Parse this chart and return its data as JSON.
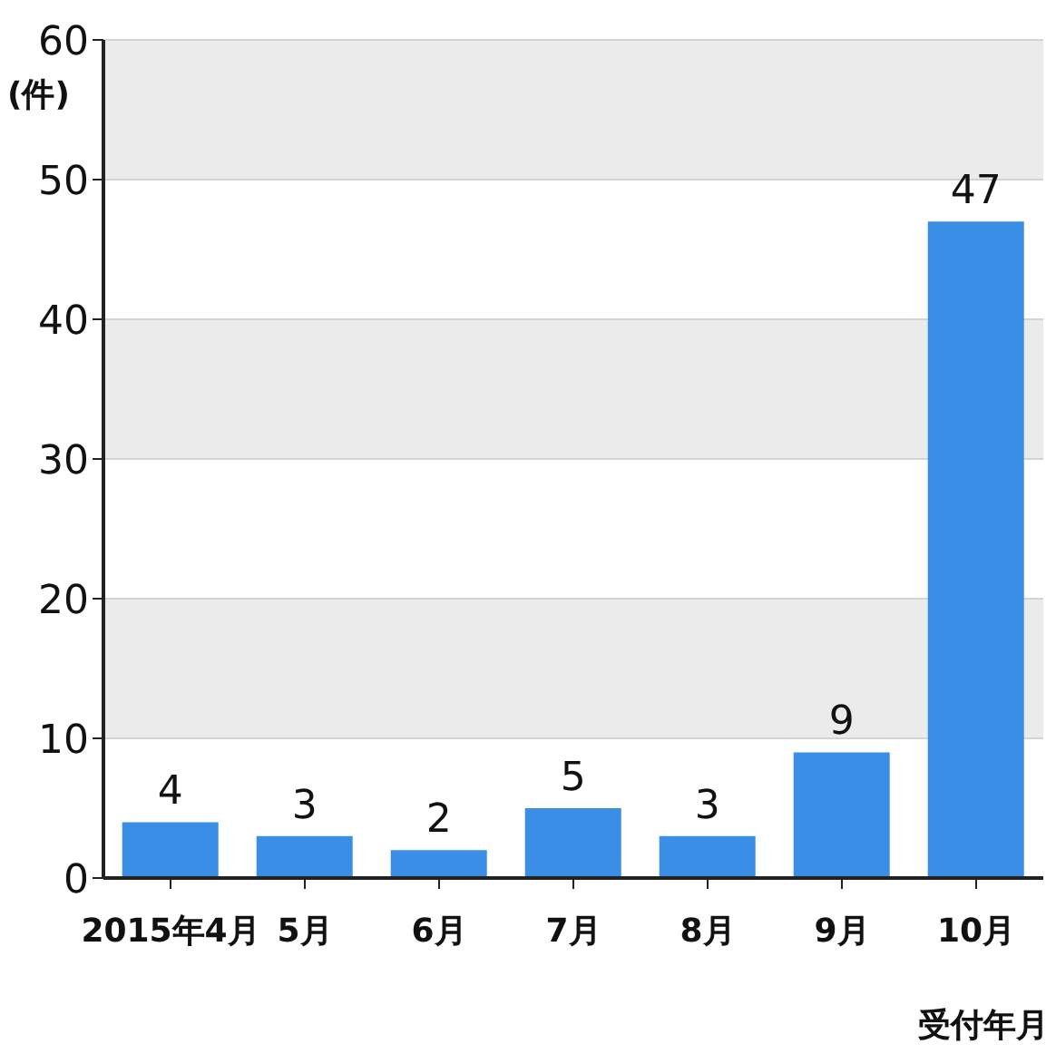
{
  "chart_data": {
    "type": "bar",
    "ylabel": "(件)",
    "xlabel": "受付年月",
    "categories": [
      "2015年4月",
      "5月",
      "6月",
      "7月",
      "8月",
      "9月",
      "10月"
    ],
    "values": [
      4,
      3,
      2,
      5,
      3,
      9,
      47
    ],
    "color": "#3a8ee6",
    "ylim": [
      0,
      60
    ],
    "yticks": [
      0,
      10,
      20,
      30,
      40,
      50,
      60
    ],
    "grid": "y",
    "data_labels": true
  }
}
